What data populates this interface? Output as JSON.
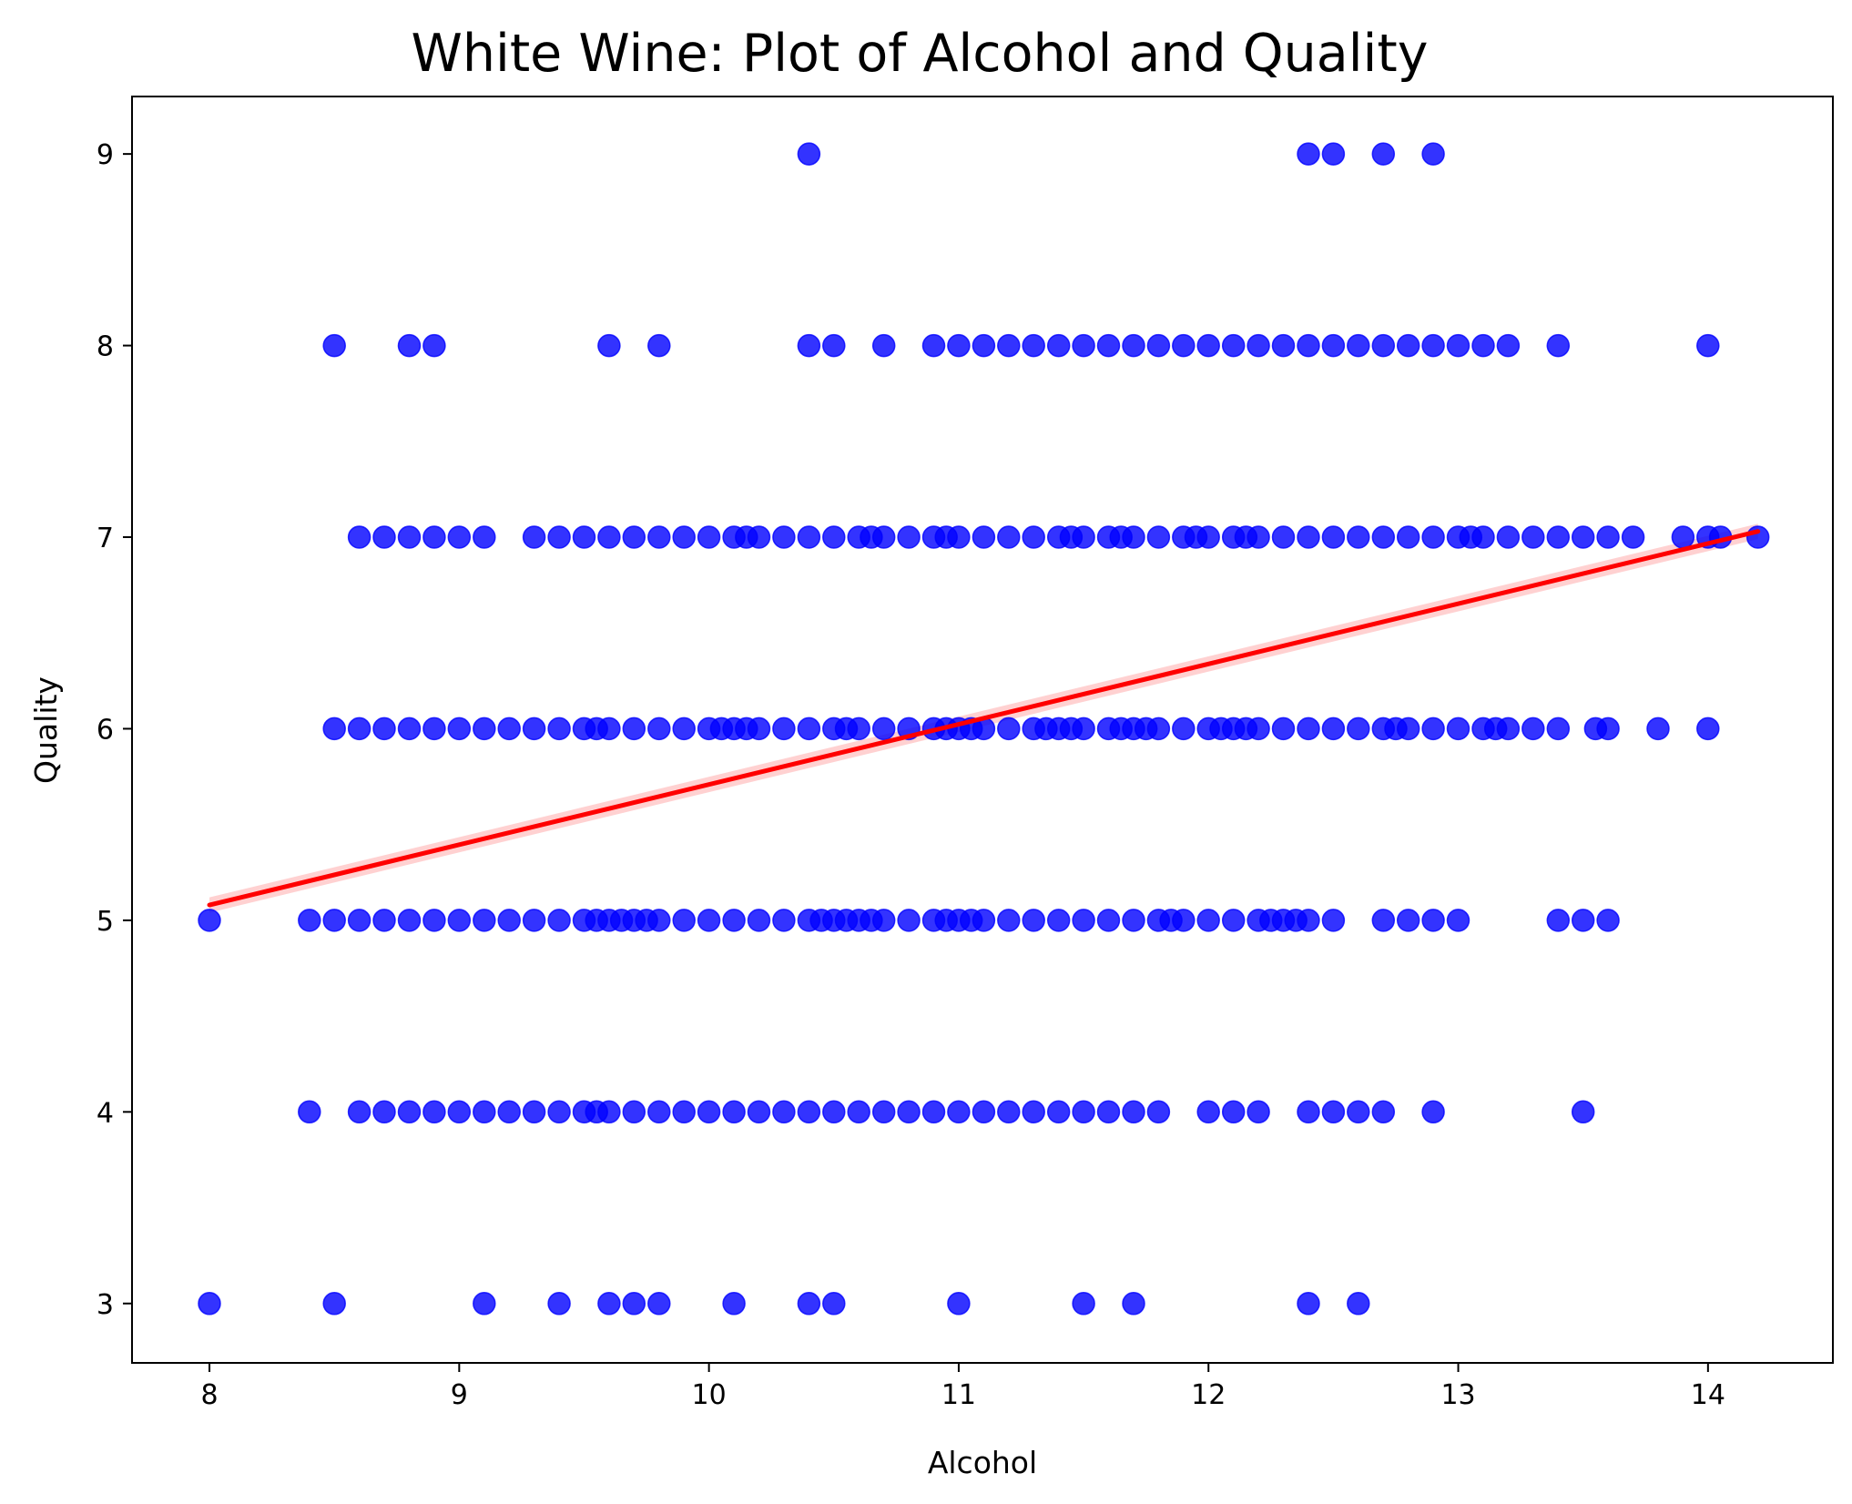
{
  "chart_data": {
    "type": "scatter",
    "title": "White Wine: Plot of Alcohol and Quality",
    "xlabel": "Alcohol",
    "ylabel": "Quality",
    "xlim": [
      7.69,
      14.5
    ],
    "ylim": [
      2.69,
      9.3
    ],
    "xticks": [
      8,
      9,
      10,
      11,
      12,
      13,
      14
    ],
    "yticks": [
      3,
      4,
      5,
      6,
      7,
      8,
      9
    ],
    "grid": false,
    "legend": "none",
    "colors": {
      "points": "#0000ff",
      "trend": "#ff0000",
      "band": "#ffb3b3"
    },
    "trendline": {
      "x": [
        8.0,
        14.2
      ],
      "y": [
        5.08,
        7.03
      ],
      "ci": 0.04
    },
    "series": [
      {
        "quality": 9,
        "alcohol": [
          10.4,
          12.4,
          12.5,
          12.7,
          12.9
        ]
      },
      {
        "quality": 8,
        "alcohol": [
          8.5,
          8.8,
          8.9,
          9.6,
          9.8,
          10.4,
          10.5,
          10.7,
          10.9,
          11.0,
          11.1,
          11.2,
          11.3,
          11.4,
          11.5,
          11.6,
          11.7,
          11.8,
          11.9,
          12.0,
          12.1,
          12.2,
          12.3,
          12.4,
          12.5,
          12.6,
          12.7,
          12.8,
          12.9,
          13.0,
          13.1,
          13.2,
          13.4,
          14.0
        ]
      },
      {
        "quality": 7,
        "alcohol": [
          8.6,
          8.7,
          8.8,
          8.9,
          9.0,
          9.1,
          9.3,
          9.4,
          9.5,
          9.6,
          9.7,
          9.8,
          9.9,
          10.0,
          10.1,
          10.15,
          10.2,
          10.3,
          10.4,
          10.5,
          10.6,
          10.65,
          10.7,
          10.8,
          10.9,
          10.95,
          11.0,
          11.1,
          11.2,
          11.3,
          11.4,
          11.45,
          11.5,
          11.6,
          11.65,
          11.7,
          11.8,
          11.9,
          11.95,
          12.0,
          12.1,
          12.15,
          12.2,
          12.3,
          12.4,
          12.5,
          12.6,
          12.7,
          12.8,
          12.9,
          13.0,
          13.05,
          13.1,
          13.2,
          13.3,
          13.4,
          13.5,
          13.6,
          13.7,
          13.9,
          14.0,
          14.05,
          14.2
        ]
      },
      {
        "quality": 6,
        "alcohol": [
          8.5,
          8.6,
          8.7,
          8.8,
          8.9,
          9.0,
          9.1,
          9.2,
          9.3,
          9.4,
          9.5,
          9.55,
          9.6,
          9.7,
          9.8,
          9.9,
          10.0,
          10.05,
          10.1,
          10.15,
          10.2,
          10.3,
          10.4,
          10.5,
          10.55,
          10.6,
          10.7,
          10.8,
          10.9,
          10.95,
          11.0,
          11.05,
          11.1,
          11.2,
          11.3,
          11.35,
          11.4,
          11.45,
          11.5,
          11.6,
          11.65,
          11.7,
          11.75,
          11.8,
          11.9,
          12.0,
          12.05,
          12.1,
          12.15,
          12.2,
          12.3,
          12.4,
          12.5,
          12.6,
          12.7,
          12.75,
          12.8,
          12.9,
          13.0,
          13.1,
          13.15,
          13.2,
          13.3,
          13.4,
          13.55,
          13.6,
          13.8,
          14.0
        ]
      },
      {
        "quality": 5,
        "alcohol": [
          8.0,
          8.4,
          8.5,
          8.6,
          8.7,
          8.8,
          8.9,
          9.0,
          9.1,
          9.2,
          9.3,
          9.4,
          9.5,
          9.55,
          9.6,
          9.65,
          9.7,
          9.75,
          9.8,
          9.9,
          10.0,
          10.1,
          10.2,
          10.3,
          10.4,
          10.45,
          10.5,
          10.55,
          10.6,
          10.65,
          10.7,
          10.8,
          10.9,
          10.95,
          11.0,
          11.05,
          11.1,
          11.2,
          11.3,
          11.4,
          11.5,
          11.6,
          11.7,
          11.8,
          11.85,
          11.9,
          12.0,
          12.1,
          12.2,
          12.25,
          12.3,
          12.35,
          12.4,
          12.5,
          12.7,
          12.8,
          12.9,
          13.0,
          13.4,
          13.5,
          13.6
        ]
      },
      {
        "quality": 4,
        "alcohol": [
          8.4,
          8.6,
          8.7,
          8.8,
          8.9,
          9.0,
          9.1,
          9.2,
          9.3,
          9.4,
          9.5,
          9.55,
          9.6,
          9.7,
          9.8,
          9.9,
          10.0,
          10.1,
          10.2,
          10.3,
          10.4,
          10.5,
          10.6,
          10.7,
          10.8,
          10.9,
          11.0,
          11.1,
          11.2,
          11.3,
          11.4,
          11.5,
          11.6,
          11.7,
          11.8,
          12.0,
          12.1,
          12.2,
          12.4,
          12.5,
          12.6,
          12.7,
          12.9,
          13.5
        ]
      },
      {
        "quality": 3,
        "alcohol": [
          8.0,
          8.5,
          9.1,
          9.4,
          9.6,
          9.7,
          9.8,
          10.1,
          10.4,
          10.5,
          11.0,
          11.5,
          11.7,
          12.4,
          12.6
        ]
      }
    ]
  }
}
